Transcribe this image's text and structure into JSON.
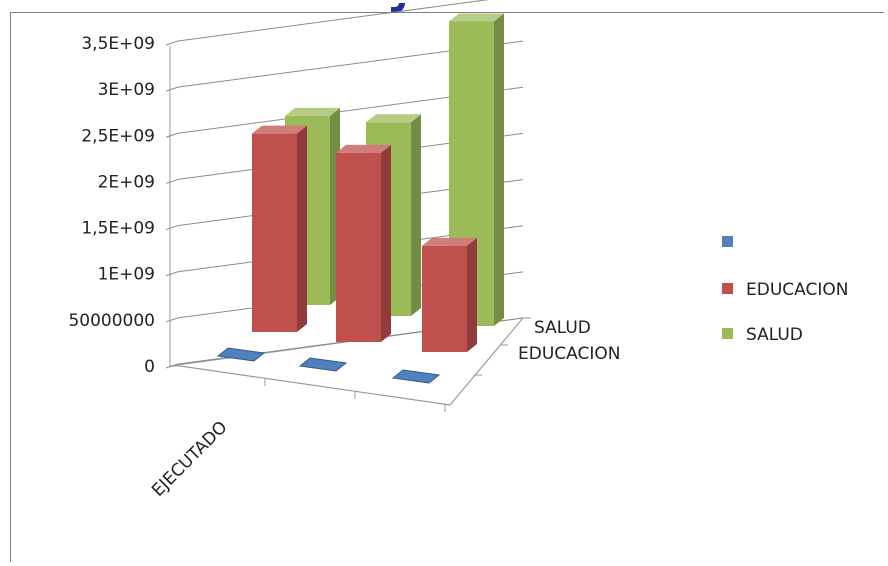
{
  "chart_data": {
    "type": "bar",
    "subtype": "3d-column",
    "title": "",
    "categories": [
      "EJECUTADO",
      "",
      ""
    ],
    "depth_axis": [
      "EDUCACION",
      "SALUD"
    ],
    "y_ticks": [
      "0",
      "50000000",
      "1E+09",
      "1,5E+09",
      "2E+09",
      "2,5E+09",
      "3E+09",
      "3,5E+09"
    ],
    "ylim": [
      0,
      3500000000
    ],
    "grid": true,
    "legend_position": "right",
    "series": [
      {
        "name": "",
        "color": "#4f81bd",
        "values": [
          0,
          0,
          0
        ]
      },
      {
        "name": "EDUCACION",
        "color": "#c0504d",
        "values": [
          2150000000,
          2050000000,
          1150000000
        ]
      },
      {
        "name": "SALUD",
        "color": "#9bbb59",
        "values": [
          2050000000,
          2100000000,
          3300000000
        ]
      }
    ]
  }
}
